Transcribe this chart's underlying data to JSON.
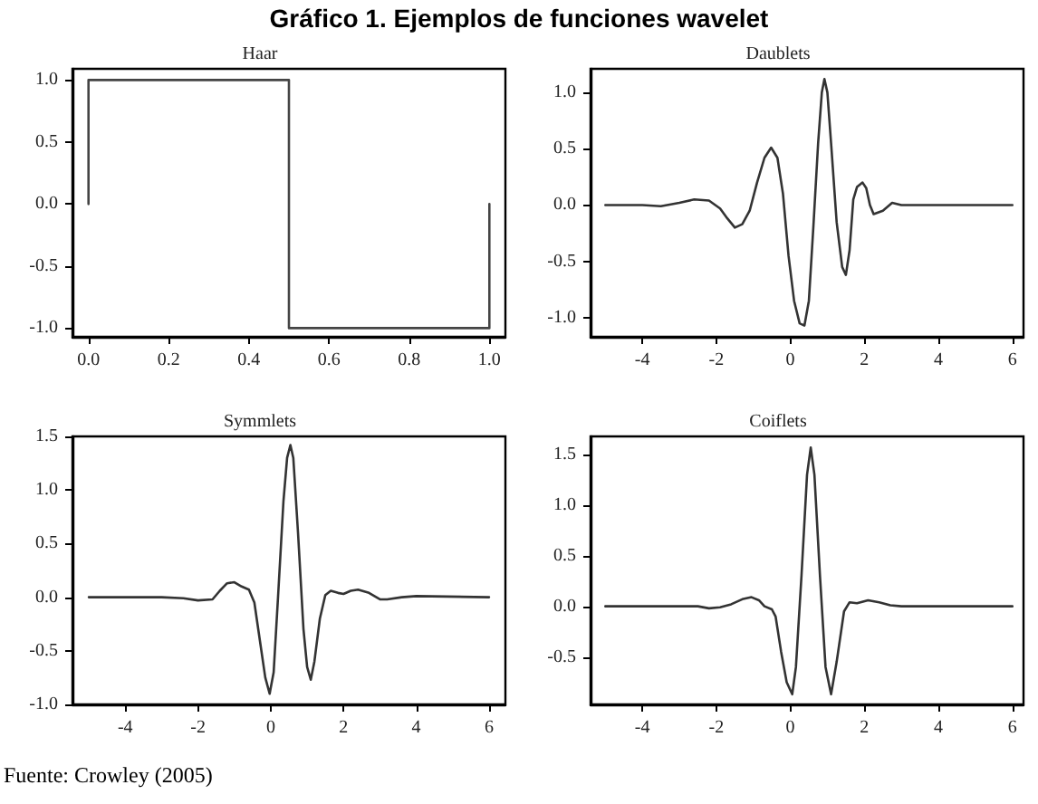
{
  "chart_data": [
    {
      "type": "other",
      "title": "Gráfico 1. Ejemplos de funciones wavelet",
      "annotations": [
        "Fuente: Crowley (2005)"
      ]
    },
    {
      "type": "line",
      "title": "Haar",
      "color": "#444444",
      "marker": "none",
      "xlim": [
        -0.04,
        1.04
      ],
      "ylim": [
        -1.07,
        1.09
      ],
      "xticks": [
        {
          "value": 0,
          "label": "0.0"
        },
        0.2,
        0.4,
        0.6,
        0.8,
        {
          "value": 1,
          "label": "1.0"
        }
      ],
      "yticks": [
        {
          "value": -1,
          "label": "-1.0"
        },
        -0.5,
        {
          "value": 0,
          "label": "0.0"
        },
        0.5,
        {
          "value": 1,
          "label": "1.0"
        }
      ],
      "x": [
        0,
        0,
        0.5,
        0.5,
        1,
        1
      ],
      "values": [
        0,
        1,
        1,
        -1,
        -1,
        0
      ]
    },
    {
      "type": "line",
      "title": "Daublets",
      "color": "#333333",
      "marker": "none",
      "xlim": [
        -5.4,
        6.3
      ],
      "ylim": [
        -1.17,
        1.21
      ],
      "xticks": [
        -4,
        -2,
        0,
        2,
        4,
        6
      ],
      "yticks": [
        {
          "value": -1,
          "label": "-1.0"
        },
        -0.5,
        {
          "value": 0,
          "label": "0.0"
        },
        0.5,
        {
          "value": 1,
          "label": "1.0"
        }
      ],
      "x": [
        -5,
        -4,
        -3.5,
        -3,
        -2.6,
        -2.2,
        -1.9,
        -1.7,
        -1.5,
        -1.3,
        -1.1,
        -0.9,
        -0.7,
        -0.52,
        -0.35,
        -0.2,
        -0.05,
        0.1,
        0.25,
        0.38,
        0.5,
        0.62,
        0.75,
        0.85,
        0.92,
        1.0,
        1.1,
        1.25,
        1.4,
        1.5,
        1.6,
        1.7,
        1.8,
        1.95,
        2.05,
        2.15,
        2.25,
        2.5,
        2.75,
        3,
        4,
        6
      ],
      "values": [
        0,
        0,
        -0.01,
        0.02,
        0.05,
        0.04,
        -0.03,
        -0.12,
        -0.2,
        -0.17,
        -0.05,
        0.2,
        0.42,
        0.51,
        0.42,
        0.1,
        -0.45,
        -0.85,
        -1.05,
        -1.07,
        -0.85,
        -0.2,
        0.55,
        1.0,
        1.12,
        1.0,
        0.55,
        -0.15,
        -0.55,
        -0.62,
        -0.4,
        0.05,
        0.16,
        0.2,
        0.15,
        0.0,
        -0.08,
        -0.05,
        0.02,
        0,
        0,
        0
      ]
    },
    {
      "type": "line",
      "title": "Symmlets",
      "color": "#333333",
      "marker": "none",
      "xlim": [
        -5.45,
        6.45
      ],
      "ylim": [
        -1,
        1.5
      ],
      "xticks": [
        -4,
        -2,
        0,
        2,
        4,
        6
      ],
      "yticks": [
        {
          "value": -1,
          "label": "-1.0"
        },
        -0.5,
        {
          "value": 0,
          "label": "0.0"
        },
        0.5,
        {
          "value": 1,
          "label": "1.0"
        },
        1.5
      ],
      "x": [
        -5,
        -3,
        -2.4,
        -2,
        -1.6,
        -1.4,
        -1.2,
        -1.0,
        -0.8,
        -0.6,
        -0.45,
        -0.3,
        -0.15,
        -0.03,
        0.08,
        0.2,
        0.35,
        0.45,
        0.54,
        0.62,
        0.75,
        0.9,
        1.0,
        1.1,
        1.2,
        1.35,
        1.5,
        1.65,
        1.85,
        2.0,
        2.2,
        2.4,
        2.7,
        3.0,
        3.2,
        3.6,
        4,
        6
      ],
      "values": [
        0,
        0,
        -0.01,
        -0.03,
        -0.02,
        0.06,
        0.13,
        0.14,
        0.1,
        0.07,
        -0.05,
        -0.4,
        -0.75,
        -0.9,
        -0.7,
        0.0,
        0.9,
        1.3,
        1.42,
        1.3,
        0.6,
        -0.3,
        -0.65,
        -0.77,
        -0.6,
        -0.2,
        0.02,
        0.06,
        0.04,
        0.03,
        0.06,
        0.07,
        0.04,
        -0.02,
        -0.02,
        0.0,
        0.01,
        0
      ]
    },
    {
      "type": "line",
      "title": "Coiflets",
      "color": "#333333",
      "marker": "none",
      "xlim": [
        -5.4,
        6.3
      ],
      "ylim": [
        -0.97,
        1.68
      ],
      "xticks": [
        -4,
        -2,
        0,
        2,
        4,
        6
      ],
      "yticks": [
        -0.5,
        {
          "value": 0,
          "label": "0.0"
        },
        0.5,
        {
          "value": 1,
          "label": "1.0"
        },
        1.5
      ],
      "x": [
        -5,
        -2.5,
        -2.2,
        -1.9,
        -1.6,
        -1.3,
        -1.05,
        -0.85,
        -0.7,
        -0.5,
        -0.4,
        -0.25,
        -0.1,
        0.05,
        0.15,
        0.3,
        0.45,
        0.55,
        0.65,
        0.8,
        0.95,
        1.1,
        1.25,
        1.45,
        1.6,
        1.8,
        2.1,
        2.4,
        2.7,
        3,
        6
      ],
      "values": [
        0,
        0,
        -0.02,
        -0.01,
        0.02,
        0.07,
        0.09,
        0.06,
        0.0,
        -0.03,
        -0.1,
        -0.45,
        -0.75,
        -0.87,
        -0.6,
        0.3,
        1.3,
        1.57,
        1.3,
        0.3,
        -0.6,
        -0.87,
        -0.55,
        -0.05,
        0.04,
        0.03,
        0.06,
        0.04,
        0.01,
        0,
        0
      ]
    }
  ]
}
